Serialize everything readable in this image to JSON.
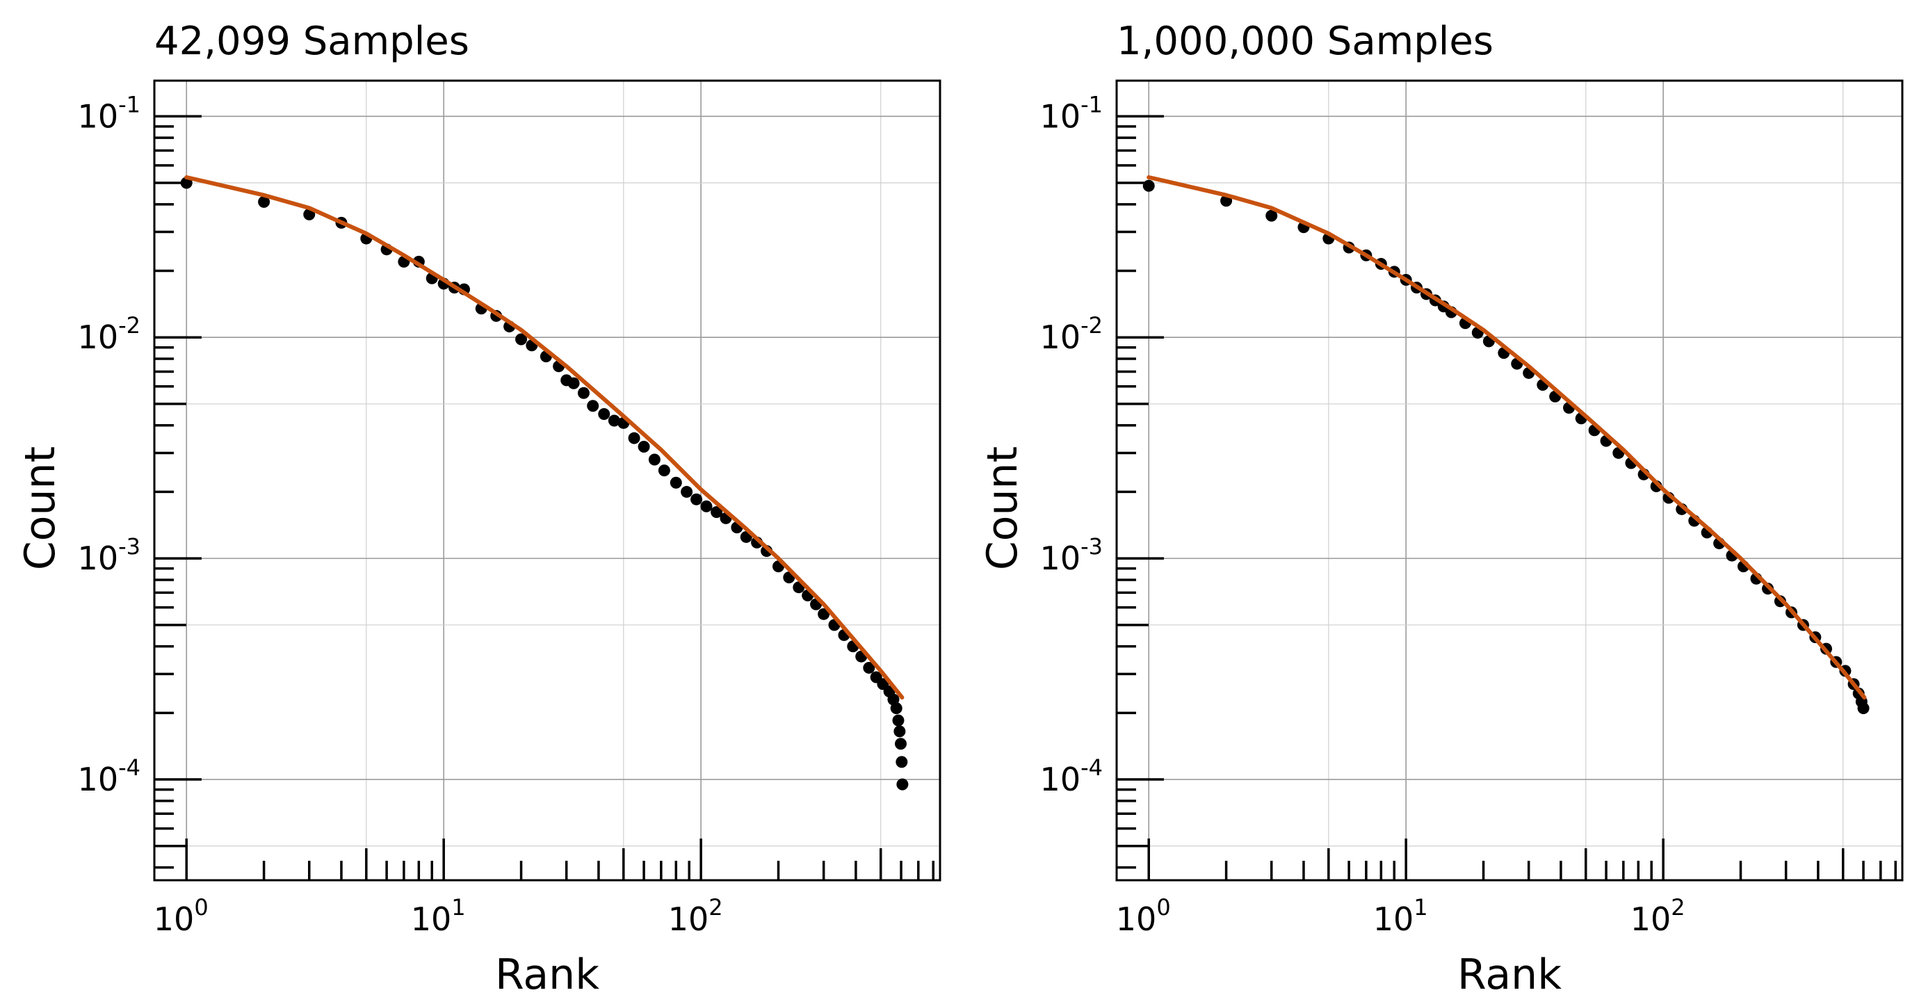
{
  "chart_data": [
    {
      "type": "scatter",
      "title": "42,099 Samples",
      "xlabel": "Rank",
      "ylabel": "Count",
      "xscale": "log",
      "yscale": "log",
      "xlim": [
        0.75,
        850
      ],
      "ylim": [
        3.5e-05,
        0.145
      ],
      "xticks": [
        1,
        10,
        100
      ],
      "xtick_labels": [
        {
          "base": "10",
          "exp": "0"
        },
        {
          "base": "10",
          "exp": "1"
        },
        {
          "base": "10",
          "exp": "2"
        }
      ],
      "yticks": [
        0.1,
        0.01,
        0.001,
        0.0001
      ],
      "ytick_labels": [
        {
          "base": "10",
          "exp": "-1"
        },
        {
          "base": "10",
          "exp": "-2"
        },
        {
          "base": "10",
          "exp": "-3"
        },
        {
          "base": "10",
          "exp": "-4"
        }
      ],
      "grid": true,
      "series": [
        {
          "kind": "points",
          "color": "#000000",
          "points": [
            [
              1,
              0.05
            ],
            [
              2,
              0.041
            ],
            [
              3,
              0.036
            ],
            [
              4,
              0.033
            ],
            [
              5,
              0.028
            ],
            [
              6,
              0.025
            ],
            [
              7,
              0.022
            ],
            [
              8,
              0.022
            ],
            [
              9,
              0.0185
            ],
            [
              10,
              0.0175
            ],
            [
              11,
              0.0168
            ],
            [
              12,
              0.0165
            ],
            [
              14,
              0.0135
            ],
            [
              16,
              0.0125
            ],
            [
              18,
              0.0112
            ],
            [
              20,
              0.0098
            ],
            [
              22,
              0.0092
            ],
            [
              25,
              0.0082
            ],
            [
              28,
              0.0074
            ],
            [
              30,
              0.0064
            ],
            [
              32,
              0.0062
            ],
            [
              35,
              0.0056
            ],
            [
              38,
              0.0049
            ],
            [
              42,
              0.0045
            ],
            [
              46,
              0.0042
            ],
            [
              50,
              0.0041
            ],
            [
              55,
              0.0035
            ],
            [
              60,
              0.0032
            ],
            [
              66,
              0.0028
            ],
            [
              72,
              0.0025
            ],
            [
              80,
              0.0022
            ],
            [
              88,
              0.002
            ],
            [
              96,
              0.00185
            ],
            [
              105,
              0.00172
            ],
            [
              115,
              0.00162
            ],
            [
              125,
              0.00152
            ],
            [
              138,
              0.00138
            ],
            [
              150,
              0.00125
            ],
            [
              165,
              0.00118
            ],
            [
              180,
              0.00108
            ],
            [
              200,
              0.00092
            ],
            [
              220,
              0.00082
            ],
            [
              240,
              0.00074
            ],
            [
              260,
              0.00068
            ],
            [
              280,
              0.00062
            ],
            [
              300,
              0.00056
            ],
            [
              330,
              0.0005
            ],
            [
              360,
              0.00045
            ],
            [
              390,
              0.0004
            ],
            [
              420,
              0.00036
            ],
            [
              450,
              0.00032
            ],
            [
              480,
              0.00029
            ],
            [
              510,
              0.00027
            ],
            [
              540,
              0.00025
            ],
            [
              560,
              0.00023
            ],
            [
              575,
              0.00021
            ],
            [
              585,
              0.000185
            ],
            [
              592,
              0.000165
            ],
            [
              598,
              0.000145
            ],
            [
              603,
              0.00012
            ],
            [
              607,
              9.5e-05
            ]
          ]
        },
        {
          "kind": "line",
          "color": "#C8520F",
          "points": [
            [
              1,
              0.053
            ],
            [
              2,
              0.044
            ],
            [
              3,
              0.0385
            ],
            [
              5,
              0.0295
            ],
            [
              7,
              0.0235
            ],
            [
              10,
              0.0182
            ],
            [
              15,
              0.0135
            ],
            [
              20,
              0.0108
            ],
            [
              30,
              0.0074
            ],
            [
              50,
              0.0044
            ],
            [
              70,
              0.0031
            ],
            [
              100,
              0.00205
            ],
            [
              150,
              0.00136
            ],
            [
              200,
              0.001
            ],
            [
              300,
              0.00062
            ],
            [
              400,
              0.00042
            ],
            [
              500,
              0.00031
            ],
            [
              605,
              0.000235
            ]
          ]
        }
      ]
    },
    {
      "type": "scatter",
      "title": "1,000,000 Samples",
      "xlabel": "Rank",
      "ylabel": "Count",
      "xscale": "log",
      "yscale": "log",
      "xlim": [
        0.75,
        850
      ],
      "ylim": [
        3.5e-05,
        0.145
      ],
      "xticks": [
        1,
        10,
        100
      ],
      "xtick_labels": [
        {
          "base": "10",
          "exp": "0"
        },
        {
          "base": "10",
          "exp": "1"
        },
        {
          "base": "10",
          "exp": "2"
        }
      ],
      "yticks": [
        0.1,
        0.01,
        0.001,
        0.0001
      ],
      "ytick_labels": [
        {
          "base": "10",
          "exp": "-1"
        },
        {
          "base": "10",
          "exp": "-2"
        },
        {
          "base": "10",
          "exp": "-3"
        },
        {
          "base": "10",
          "exp": "-4"
        }
      ],
      "grid": true,
      "series": [
        {
          "kind": "points",
          "color": "#000000",
          "points": [
            [
              1,
              0.0485
            ],
            [
              2,
              0.0415
            ],
            [
              3,
              0.0355
            ],
            [
              4,
              0.0315
            ],
            [
              5,
              0.028
            ],
            [
              6,
              0.0255
            ],
            [
              7,
              0.0235
            ],
            [
              8,
              0.0215
            ],
            [
              9,
              0.0198
            ],
            [
              10,
              0.0182
            ],
            [
              11,
              0.0168
            ],
            [
              12,
              0.0157
            ],
            [
              13,
              0.0147
            ],
            [
              14,
              0.0138
            ],
            [
              15,
              0.013
            ],
            [
              17,
              0.0116
            ],
            [
              19,
              0.0105
            ],
            [
              21,
              0.0096
            ],
            [
              24,
              0.0085
            ],
            [
              27,
              0.0076
            ],
            [
              30,
              0.0069
            ],
            [
              34,
              0.0061
            ],
            [
              38,
              0.0054
            ],
            [
              43,
              0.0048
            ],
            [
              48,
              0.0043
            ],
            [
              54,
              0.0038
            ],
            [
              60,
              0.0034
            ],
            [
              67,
              0.003
            ],
            [
              75,
              0.0027
            ],
            [
              84,
              0.0024
            ],
            [
              94,
              0.00212
            ],
            [
              105,
              0.00188
            ],
            [
              118,
              0.00167
            ],
            [
              132,
              0.00148
            ],
            [
              148,
              0.00131
            ],
            [
              165,
              0.00117
            ],
            [
              185,
              0.00103
            ],
            [
              205,
              0.00092
            ],
            [
              230,
              0.00081
            ],
            [
              255,
              0.00073
            ],
            [
              285,
              0.00064
            ],
            [
              315,
              0.00057
            ],
            [
              350,
              0.0005
            ],
            [
              390,
              0.00044
            ],
            [
              430,
              0.00039
            ],
            [
              470,
              0.00034
            ],
            [
              510,
              0.00031
            ],
            [
              550,
              0.00027
            ],
            [
              575,
              0.000245
            ],
            [
              590,
              0.000225
            ],
            [
              600,
              0.00021
            ]
          ]
        },
        {
          "kind": "line",
          "color": "#C8520F",
          "points": [
            [
              1,
              0.053
            ],
            [
              2,
              0.044
            ],
            [
              3,
              0.0385
            ],
            [
              5,
              0.0295
            ],
            [
              7,
              0.0235
            ],
            [
              10,
              0.0182
            ],
            [
              15,
              0.0135
            ],
            [
              20,
              0.0108
            ],
            [
              30,
              0.0074
            ],
            [
              50,
              0.0044
            ],
            [
              70,
              0.0031
            ],
            [
              100,
              0.00205
            ],
            [
              150,
              0.00136
            ],
            [
              200,
              0.001
            ],
            [
              300,
              0.00062
            ],
            [
              400,
              0.00042
            ],
            [
              500,
              0.00031
            ],
            [
              605,
              0.000235
            ]
          ]
        }
      ]
    }
  ]
}
